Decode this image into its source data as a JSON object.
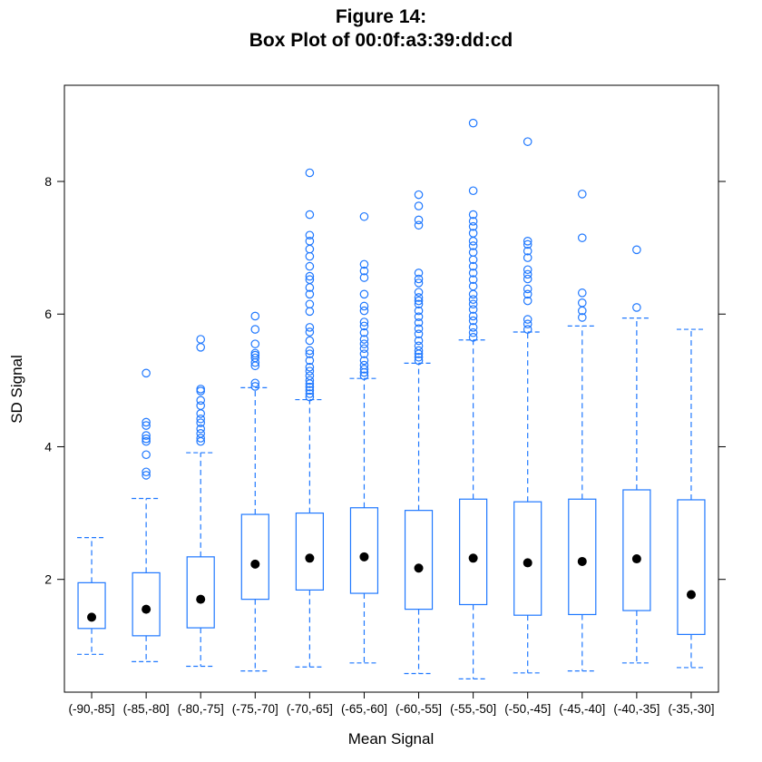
{
  "chart_data": {
    "type": "box",
    "title": "Figure 14:",
    "subtitle": "Box Plot of 00:0f:a3:39:dd:cd",
    "xlabel": "Mean Signal",
    "ylabel": "SD Signal",
    "ylim": [
      0.3,
      9.45
    ],
    "yticks": [
      2,
      4,
      6,
      8
    ],
    "colors": {
      "box": "#1f78ff",
      "median": "#000000"
    },
    "categories": [
      "(-90,-85]",
      "(-85,-80]",
      "(-80,-75]",
      "(-75,-70]",
      "(-70,-65]",
      "(-65,-60]",
      "(-60,-55]",
      "(-55,-50]",
      "(-50,-45]",
      "(-45,-40]",
      "(-40,-35]",
      "(-35,-30]"
    ],
    "boxes": [
      {
        "whisker_low": 0.87,
        "q1": 1.26,
        "median": 1.43,
        "q3": 1.95,
        "whisker_high": 2.63,
        "outliers": []
      },
      {
        "whisker_low": 0.76,
        "q1": 1.15,
        "median": 1.55,
        "q3": 2.1,
        "whisker_high": 3.22,
        "outliers": [
          3.57,
          3.62,
          3.88,
          4.08,
          4.12,
          4.17,
          4.32,
          4.37,
          5.11
        ]
      },
      {
        "whisker_low": 0.69,
        "q1": 1.27,
        "median": 1.7,
        "q3": 2.34,
        "whisker_high": 3.91,
        "outliers": [
          4.08,
          4.13,
          4.2,
          4.27,
          4.36,
          4.42,
          4.5,
          4.62,
          4.7,
          4.84,
          4.87,
          5.5,
          5.62
        ]
      },
      {
        "whisker_low": 0.62,
        "q1": 1.7,
        "median": 2.23,
        "q3": 2.98,
        "whisker_high": 4.89,
        "outliers": [
          4.91,
          4.96,
          5.22,
          5.27,
          5.34,
          5.38,
          5.41,
          5.55,
          5.77,
          5.97
        ]
      },
      {
        "whisker_low": 0.68,
        "q1": 1.84,
        "median": 2.32,
        "q3": 3.0,
        "whisker_high": 4.71,
        "outliers": [
          4.75,
          4.8,
          4.85,
          4.9,
          4.95,
          5.0,
          5.07,
          5.14,
          5.2,
          5.3,
          5.4,
          5.45,
          5.6,
          5.73,
          5.8,
          6.04,
          6.15,
          6.3,
          6.4,
          6.52,
          6.57,
          6.72,
          6.87,
          6.98,
          7.1,
          7.19,
          7.5,
          8.13
        ]
      },
      {
        "whisker_low": 0.74,
        "q1": 1.79,
        "median": 2.34,
        "q3": 3.08,
        "whisker_high": 5.03,
        "outliers": [
          5.07,
          5.12,
          5.17,
          5.23,
          5.3,
          5.4,
          5.48,
          5.55,
          5.62,
          5.72,
          5.82,
          5.88,
          6.05,
          6.12,
          6.3,
          6.55,
          6.65,
          6.75,
          7.47
        ]
      },
      {
        "whisker_low": 0.58,
        "q1": 1.55,
        "median": 2.17,
        "q3": 3.04,
        "whisker_high": 5.26,
        "outliers": [
          5.3,
          5.35,
          5.4,
          5.45,
          5.52,
          5.6,
          5.7,
          5.78,
          5.87,
          5.96,
          6.05,
          6.15,
          6.2,
          6.25,
          6.33,
          6.47,
          6.53,
          6.62,
          7.34,
          7.42,
          7.63,
          7.8
        ]
      },
      {
        "whisker_low": 0.5,
        "q1": 1.62,
        "median": 2.32,
        "q3": 3.21,
        "whisker_high": 5.61,
        "outliers": [
          5.65,
          5.72,
          5.8,
          5.9,
          5.97,
          6.07,
          6.15,
          6.22,
          6.3,
          6.42,
          6.52,
          6.62,
          6.72,
          6.82,
          6.93,
          7.03,
          7.1,
          7.22,
          7.32,
          7.4,
          7.5,
          7.86,
          8.88
        ]
      },
      {
        "whisker_low": 0.59,
        "q1": 1.46,
        "median": 2.25,
        "q3": 3.17,
        "whisker_high": 5.73,
        "outliers": [
          5.77,
          5.85,
          5.92,
          6.2,
          6.3,
          6.38,
          6.53,
          6.6,
          6.67,
          6.85,
          6.95,
          7.05,
          7.1,
          8.6
        ]
      },
      {
        "whisker_low": 0.62,
        "q1": 1.47,
        "median": 2.27,
        "q3": 3.21,
        "whisker_high": 5.82,
        "outliers": [
          5.95,
          6.05,
          6.17,
          6.32,
          7.15,
          7.81
        ]
      },
      {
        "whisker_low": 0.74,
        "q1": 1.53,
        "median": 2.31,
        "q3": 3.35,
        "whisker_high": 5.94,
        "outliers": [
          6.1,
          6.97
        ]
      },
      {
        "whisker_low": 0.67,
        "q1": 1.17,
        "median": 1.77,
        "q3": 3.2,
        "whisker_high": 5.77,
        "outliers": []
      }
    ]
  }
}
